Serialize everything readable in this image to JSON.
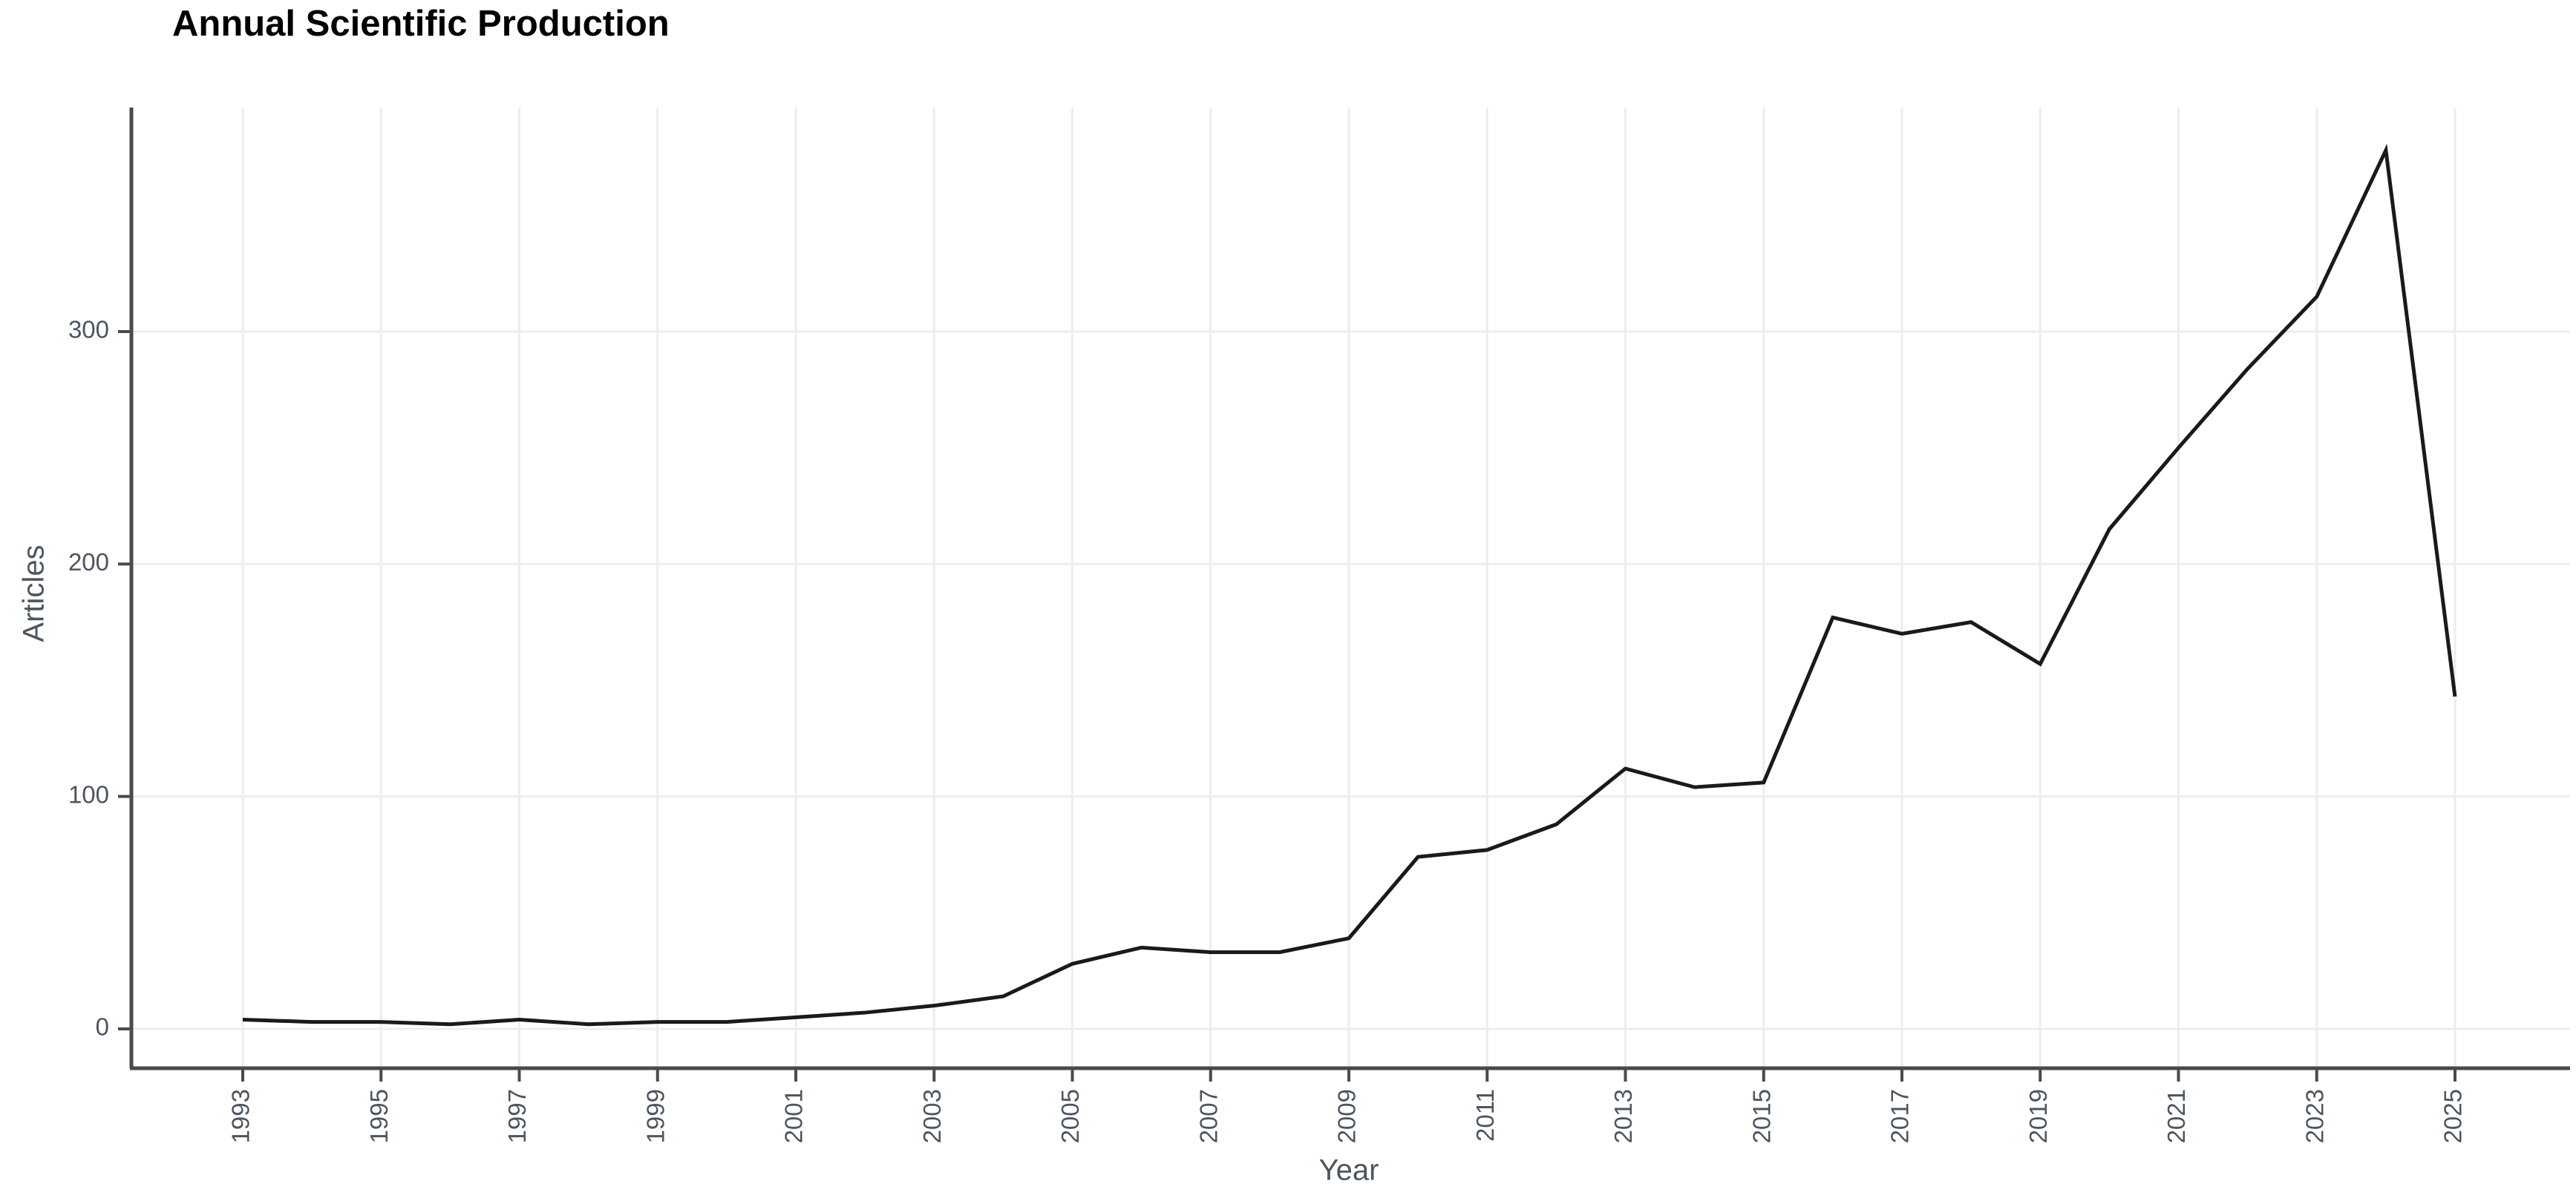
{
  "chart_data": {
    "type": "line",
    "title": "Annual Scientific Production",
    "xlabel": "Year",
    "ylabel": "Articles",
    "x": [
      1993,
      1994,
      1995,
      1996,
      1997,
      1998,
      1999,
      2000,
      2001,
      2002,
      2003,
      2004,
      2005,
      2006,
      2007,
      2008,
      2009,
      2010,
      2011,
      2012,
      2013,
      2014,
      2015,
      2016,
      2017,
      2018,
      2019,
      2020,
      2021,
      2022,
      2023,
      2024,
      2025
    ],
    "values": [
      4,
      3,
      3,
      2,
      4,
      2,
      3,
      3,
      5,
      7,
      10,
      14,
      28,
      35,
      33,
      33,
      39,
      74,
      77,
      88,
      112,
      104,
      106,
      177,
      170,
      175,
      157,
      215,
      250,
      284,
      315,
      378,
      143
    ],
    "x_ticks": [
      1993,
      1995,
      1997,
      1999,
      2001,
      2003,
      2005,
      2007,
      2009,
      2011,
      2013,
      2015,
      2017,
      2019,
      2021,
      2023,
      2025
    ],
    "y_ticks": [
      0,
      100,
      200,
      300
    ],
    "ylim": [
      0,
      396
    ],
    "xlim": [
      1991.4,
      2026.6
    ],
    "grid": "major-only",
    "legend": "none",
    "colors": {
      "line": "#1a1a1a",
      "grid": "#ededed",
      "axis": "#4a4a4a",
      "tick_text": "#4d5560",
      "title_text": "#000000",
      "background": "#ffffff"
    }
  }
}
